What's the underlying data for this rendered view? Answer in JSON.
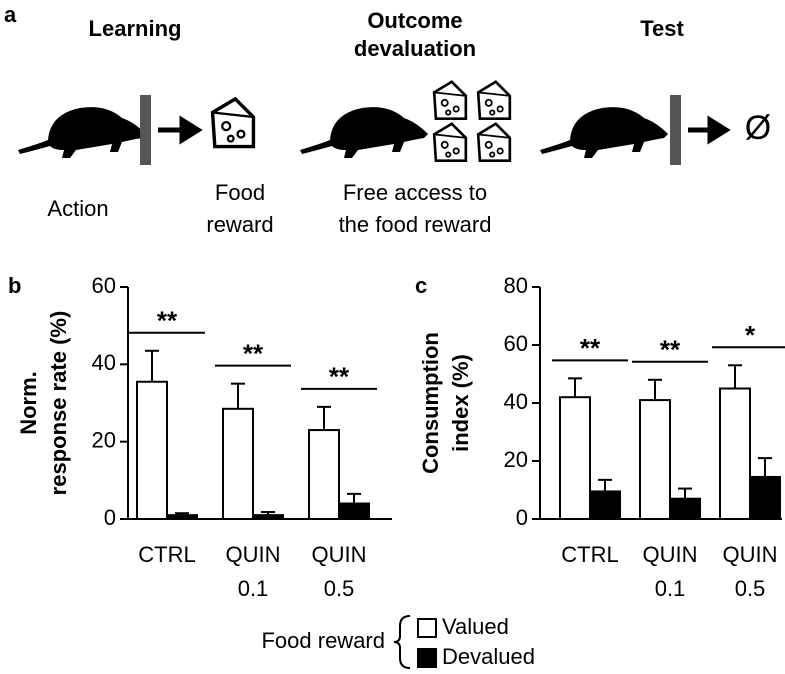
{
  "panel_a": {
    "label": "a",
    "stages": [
      {
        "title_lines": [
          "Learning"
        ],
        "caption_groups": [
          [
            "Action"
          ],
          [
            "Food",
            "reward"
          ]
        ]
      },
      {
        "title_lines": [
          "Outcome",
          "devaluation"
        ],
        "caption_groups": [
          [
            "Free access to",
            "the food reward"
          ]
        ]
      },
      {
        "title_lines": [
          "Test"
        ],
        "outcome": "Ø"
      }
    ]
  },
  "legend": {
    "title": "Food reward"
  },
  "chart_data": [
    {
      "type": "bar",
      "panel": "b",
      "ylabel_lines": [
        "Norm.",
        "response rate (%)"
      ],
      "categories": [
        [
          "CTRL"
        ],
        [
          "QUIN",
          "0.1"
        ],
        [
          "QUIN",
          "0.5"
        ]
      ],
      "series": [
        {
          "name": "Valued",
          "color": "#ffffff",
          "values": [
            35.5,
            28.5,
            23
          ],
          "errors": [
            8,
            6.5,
            6
          ]
        },
        {
          "name": "Devalued",
          "color": "#000000",
          "values": [
            1,
            1,
            4
          ],
          "errors": [
            0.5,
            0.8,
            2.5
          ]
        }
      ],
      "significance": [
        "**",
        "**",
        "**"
      ],
      "ylim": [
        0,
        60
      ],
      "yticks": [
        0,
        20,
        40,
        60
      ]
    },
    {
      "type": "bar",
      "panel": "c",
      "ylabel_lines": [
        "Consumption",
        "index (%)"
      ],
      "categories": [
        [
          "CTRL"
        ],
        [
          "QUIN",
          "0.1"
        ],
        [
          "QUIN",
          "0.5"
        ]
      ],
      "series": [
        {
          "name": "Valued",
          "color": "#ffffff",
          "values": [
            42,
            41,
            45
          ],
          "errors": [
            6.5,
            7,
            8
          ]
        },
        {
          "name": "Devalued",
          "color": "#000000",
          "values": [
            9.5,
            7,
            14.5
          ],
          "errors": [
            4,
            3.5,
            6.5
          ]
        }
      ],
      "significance": [
        "**",
        "**",
        "*"
      ],
      "ylim": [
        0,
        80
      ],
      "yticks": [
        0,
        20,
        40,
        60,
        80
      ]
    }
  ]
}
